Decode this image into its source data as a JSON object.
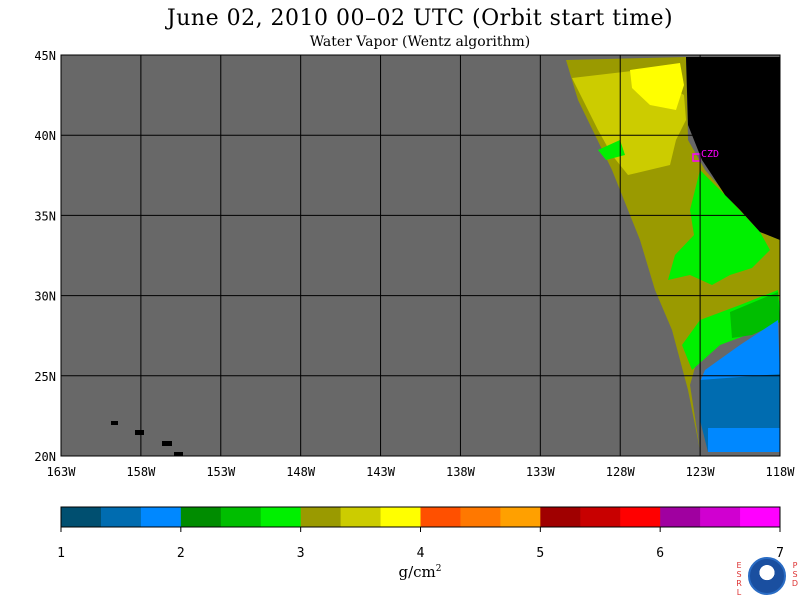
{
  "title": "June 02, 2010  00–02 UTC  (Orbit start time)",
  "subtitle": "Water Vapor (Wentz algorithm)",
  "map": {
    "lon_labels": [
      "163W",
      "158W",
      "153W",
      "148W",
      "143W",
      "138W",
      "133W",
      "128W",
      "123W",
      "118W"
    ],
    "lat_labels": [
      "45N",
      "40N",
      "35N",
      "30N",
      "25N",
      "20N"
    ],
    "lon_range": [
      -163,
      -118
    ],
    "lat_range": [
      20,
      45
    ],
    "station_label": "CZD",
    "colors": {
      "no_data": "#686868",
      "land": "#000000",
      "station": "#ff00ff"
    }
  },
  "colorbar": {
    "tick_labels": [
      "1",
      "2",
      "3",
      "4",
      "5",
      "6",
      "7"
    ],
    "range": [
      1,
      7
    ],
    "unit": "g/cm",
    "unit_exponent": "2",
    "colors": [
      "#004f70",
      "#006cb0",
      "#0088ff",
      "#008c00",
      "#00be00",
      "#00f000",
      "#9a9a00",
      "#cccc00",
      "#ffff00",
      "#ff5000",
      "#ff7800",
      "#ffa000",
      "#a00000",
      "#c80000",
      "#ff0000",
      "#a000a0",
      "#d000d0",
      "#ff00ff"
    ]
  },
  "logo": {
    "left_letters": [
      "E",
      "S",
      "R",
      "L"
    ],
    "right_letters": [
      "P",
      "S",
      "D"
    ],
    "badge": "NOAA"
  }
}
